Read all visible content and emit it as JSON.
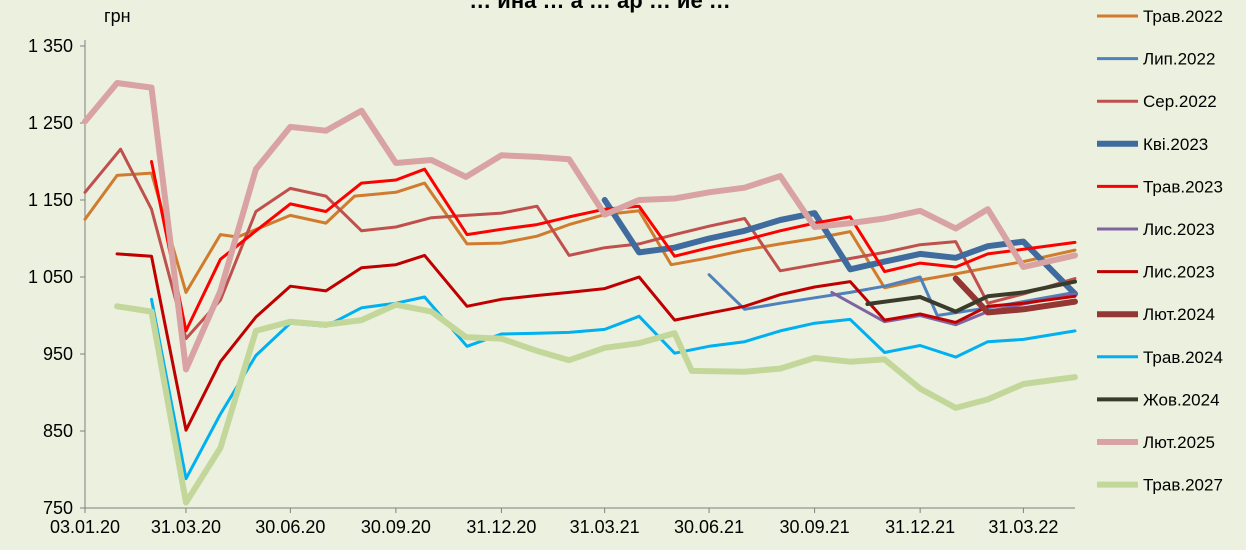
{
  "chart_data": {
    "type": "line",
    "title": "… ина … а … ар … ие …",
    "ylabel": "грн",
    "xlabel": "",
    "ylim": [
      750,
      1350
    ],
    "yticks": [
      750,
      850,
      950,
      1050,
      1150,
      1250,
      1350
    ],
    "ytick_labels": [
      "750",
      "850",
      "950",
      "1 050",
      "1 150",
      "1 250",
      "1 350"
    ],
    "xticks": [
      "2020-01-03",
      "2020-03-31",
      "2020-06-30",
      "2020-09-30",
      "2020-12-31",
      "2021-03-31",
      "2021-06-30",
      "2021-09-30",
      "2021-12-31",
      "2022-03-31"
    ],
    "xtick_labels": [
      "03.01.20",
      "31.03.20",
      "30.06.20",
      "30.09.20",
      "31.12.20",
      "31.03.21",
      "30.06.21",
      "30.09.21",
      "31.12.21",
      "31.03.22"
    ],
    "xlim": [
      "2020-01-03",
      "2022-05-15"
    ],
    "grid": false,
    "legend_position": "right",
    "series": [
      {
        "name": "Трав.2022",
        "color": "#d07b2e",
        "width": 3,
        "points": [
          [
            "2020-01-03",
            1125
          ],
          [
            "2020-01-31",
            1182
          ],
          [
            "2020-03-01",
            1185
          ],
          [
            "2020-03-31",
            1030
          ],
          [
            "2020-04-30",
            1105
          ],
          [
            "2020-05-15",
            1102
          ],
          [
            "2020-06-30",
            1130
          ],
          [
            "2020-07-31",
            1120
          ],
          [
            "2020-08-25",
            1155
          ],
          [
            "2020-09-30",
            1160
          ],
          [
            "2020-10-25",
            1172
          ],
          [
            "2020-12-01",
            1093
          ],
          [
            "2020-12-31",
            1094
          ],
          [
            "2021-01-31",
            1103
          ],
          [
            "2021-02-28",
            1118
          ],
          [
            "2021-03-31",
            1131
          ],
          [
            "2021-04-30",
            1136
          ],
          [
            "2021-05-28",
            1066
          ],
          [
            "2021-06-30",
            1075
          ],
          [
            "2021-07-31",
            1085
          ],
          [
            "2021-08-31",
            1093
          ],
          [
            "2021-09-30",
            1100
          ],
          [
            "2021-10-31",
            1109
          ],
          [
            "2021-11-30",
            1036
          ],
          [
            "2021-12-31",
            1046
          ],
          [
            "2022-01-31",
            1054
          ],
          [
            "2022-02-28",
            1062
          ],
          [
            "2022-03-31",
            1070
          ],
          [
            "2022-05-15",
            1085
          ]
        ]
      },
      {
        "name": "Лип.2022",
        "color": "#4f81bd",
        "width": 3,
        "points": [
          [
            "2021-06-30",
            1053
          ],
          [
            "2021-07-31",
            1008
          ],
          [
            "2021-08-31",
            1016
          ],
          [
            "2021-09-30",
            1023
          ],
          [
            "2021-10-31",
            1030
          ],
          [
            "2021-11-30",
            1038
          ],
          [
            "2021-12-31",
            1050
          ],
          [
            "2022-01-15",
            1000
          ],
          [
            "2022-02-28",
            1010
          ],
          [
            "2022-03-31",
            1018
          ],
          [
            "2022-05-15",
            1030
          ]
        ]
      },
      {
        "name": "Сер.2022",
        "color": "#c0504d",
        "width": 3,
        "points": [
          [
            "2020-01-03",
            1160
          ],
          [
            "2020-02-03",
            1216
          ],
          [
            "2020-03-01",
            1138
          ],
          [
            "2020-03-31",
            970
          ],
          [
            "2020-04-30",
            1020
          ],
          [
            "2020-05-31",
            1135
          ],
          [
            "2020-06-30",
            1165
          ],
          [
            "2020-07-31",
            1155
          ],
          [
            "2020-08-31",
            1110
          ],
          [
            "2020-09-30",
            1115
          ],
          [
            "2020-10-31",
            1127
          ],
          [
            "2020-11-30",
            1130
          ],
          [
            "2020-12-31",
            1133
          ],
          [
            "2021-01-31",
            1142
          ],
          [
            "2021-02-28",
            1078
          ],
          [
            "2021-03-31",
            1088
          ],
          [
            "2021-04-30",
            1093
          ],
          [
            "2021-05-31",
            1105
          ],
          [
            "2021-06-30",
            1116
          ],
          [
            "2021-07-31",
            1126
          ],
          [
            "2021-08-31",
            1058
          ],
          [
            "2021-09-30",
            1066
          ],
          [
            "2021-10-31",
            1074
          ],
          [
            "2021-11-30",
            1082
          ],
          [
            "2021-12-31",
            1092
          ],
          [
            "2022-01-31",
            1096
          ],
          [
            "2022-02-28",
            1016
          ],
          [
            "2022-03-31",
            1028
          ],
          [
            "2022-05-15",
            1048
          ]
        ]
      },
      {
        "name": "Кві.2023",
        "color": "#3f6b9e",
        "width": 6,
        "points": [
          [
            "2021-03-31",
            1150
          ],
          [
            "2021-04-30",
            1082
          ],
          [
            "2021-05-31",
            1088
          ],
          [
            "2021-06-30",
            1100
          ],
          [
            "2021-07-31",
            1110
          ],
          [
            "2021-08-31",
            1124
          ],
          [
            "2021-09-30",
            1133
          ],
          [
            "2021-10-31",
            1060
          ],
          [
            "2021-11-30",
            1070
          ],
          [
            "2021-12-31",
            1080
          ],
          [
            "2022-01-31",
            1075
          ],
          [
            "2022-02-28",
            1090
          ],
          [
            "2022-03-31",
            1096
          ],
          [
            "2022-05-15",
            1028
          ]
        ]
      },
      {
        "name": "Трав.2023",
        "color": "#ff0000",
        "width": 3,
        "points": [
          [
            "2020-03-01",
            1200
          ],
          [
            "2020-03-31",
            980
          ],
          [
            "2020-04-30",
            1073
          ],
          [
            "2020-05-31",
            1110
          ],
          [
            "2020-06-30",
            1145
          ],
          [
            "2020-07-31",
            1135
          ],
          [
            "2020-08-31",
            1172
          ],
          [
            "2020-09-30",
            1176
          ],
          [
            "2020-10-25",
            1190
          ],
          [
            "2020-12-01",
            1105
          ],
          [
            "2020-12-31",
            1112
          ],
          [
            "2021-01-31",
            1118
          ],
          [
            "2021-02-28",
            1128
          ],
          [
            "2021-03-31",
            1138
          ],
          [
            "2021-04-30",
            1142
          ],
          [
            "2021-05-31",
            1077
          ],
          [
            "2021-06-30",
            1088
          ],
          [
            "2021-07-31",
            1098
          ],
          [
            "2021-08-31",
            1110
          ],
          [
            "2021-09-30",
            1120
          ],
          [
            "2021-10-31",
            1128
          ],
          [
            "2021-11-30",
            1057
          ],
          [
            "2021-12-31",
            1068
          ],
          [
            "2022-01-31",
            1063
          ],
          [
            "2022-02-28",
            1080
          ],
          [
            "2022-03-31",
            1086
          ],
          [
            "2022-05-15",
            1095
          ]
        ]
      },
      {
        "name": "Лис.2023",
        "color": "#8064a2",
        "width": 3,
        "points": [
          [
            "2021-10-15",
            1030
          ],
          [
            "2021-11-30",
            992
          ],
          [
            "2021-12-31",
            1000
          ],
          [
            "2022-01-31",
            988
          ],
          [
            "2022-02-28",
            1005
          ],
          [
            "2022-03-31",
            1015
          ],
          [
            "2022-05-15",
            1028
          ]
        ]
      },
      {
        "name": "Лис.2023",
        "color": "#c00000",
        "width": 3,
        "points": [
          [
            "2020-01-31",
            1080
          ],
          [
            "2020-03-01",
            1077
          ],
          [
            "2020-03-31",
            851
          ],
          [
            "2020-04-30",
            940
          ],
          [
            "2020-05-31",
            998
          ],
          [
            "2020-06-30",
            1038
          ],
          [
            "2020-07-31",
            1032
          ],
          [
            "2020-08-31",
            1062
          ],
          [
            "2020-09-30",
            1066
          ],
          [
            "2020-10-25",
            1078
          ],
          [
            "2020-12-01",
            1012
          ],
          [
            "2020-12-31",
            1021
          ],
          [
            "2021-01-31",
            1026
          ],
          [
            "2021-02-28",
            1030
          ],
          [
            "2021-03-31",
            1035
          ],
          [
            "2021-04-30",
            1050
          ],
          [
            "2021-05-31",
            994
          ],
          [
            "2021-06-30",
            1003
          ],
          [
            "2021-07-31",
            1012
          ],
          [
            "2021-08-31",
            1027
          ],
          [
            "2021-09-30",
            1037
          ],
          [
            "2021-10-31",
            1044
          ],
          [
            "2021-11-30",
            994
          ],
          [
            "2021-12-31",
            1002
          ],
          [
            "2022-01-31",
            991
          ],
          [
            "2022-02-28",
            1012
          ],
          [
            "2022-03-31",
            1016
          ],
          [
            "2022-05-15",
            1025
          ]
        ]
      },
      {
        "name": "Лют.2024",
        "color": "#943634",
        "width": 6,
        "points": [
          [
            "2022-01-31",
            1048
          ],
          [
            "2022-02-28",
            1004
          ],
          [
            "2022-03-31",
            1008
          ],
          [
            "2022-05-15",
            1018
          ]
        ]
      },
      {
        "name": "Трав.2024",
        "color": "#00b0f0",
        "width": 3,
        "points": [
          [
            "2020-03-01",
            1021
          ],
          [
            "2020-03-31",
            788
          ],
          [
            "2020-04-30",
            872
          ],
          [
            "2020-05-31",
            948
          ],
          [
            "2020-06-30",
            990
          ],
          [
            "2020-07-31",
            986
          ],
          [
            "2020-08-31",
            1010
          ],
          [
            "2020-09-30",
            1016
          ],
          [
            "2020-10-25",
            1024
          ],
          [
            "2020-12-01",
            960
          ],
          [
            "2020-12-31",
            976
          ],
          [
            "2021-01-31",
            977
          ],
          [
            "2021-02-28",
            978
          ],
          [
            "2021-03-31",
            982
          ],
          [
            "2021-04-30",
            999
          ],
          [
            "2021-05-31",
            951
          ],
          [
            "2021-06-30",
            960
          ],
          [
            "2021-07-31",
            966
          ],
          [
            "2021-08-31",
            980
          ],
          [
            "2021-09-30",
            990
          ],
          [
            "2021-10-31",
            995
          ],
          [
            "2021-11-30",
            952
          ],
          [
            "2021-12-31",
            961
          ],
          [
            "2022-01-31",
            946
          ],
          [
            "2022-02-28",
            966
          ],
          [
            "2022-03-31",
            969
          ],
          [
            "2022-05-15",
            980
          ]
        ]
      },
      {
        "name": "Жов.2024",
        "color": "#3b3b2b",
        "width": 4,
        "points": [
          [
            "2021-11-15",
            1015
          ],
          [
            "2021-12-31",
            1024
          ],
          [
            "2022-01-31",
            1005
          ],
          [
            "2022-02-28",
            1025
          ],
          [
            "2022-03-31",
            1030
          ],
          [
            "2022-05-15",
            1044
          ]
        ]
      },
      {
        "name": "Лют.2025",
        "color": "#d9a3a3",
        "width": 6,
        "points": [
          [
            "2020-01-03",
            1252
          ],
          [
            "2020-01-31",
            1302
          ],
          [
            "2020-03-01",
            1296
          ],
          [
            "2020-03-31",
            930
          ],
          [
            "2020-04-30",
            1032
          ],
          [
            "2020-05-31",
            1190
          ],
          [
            "2020-06-30",
            1245
          ],
          [
            "2020-07-31",
            1240
          ],
          [
            "2020-08-31",
            1266
          ],
          [
            "2020-09-30",
            1198
          ],
          [
            "2020-10-31",
            1202
          ],
          [
            "2020-11-30",
            1180
          ],
          [
            "2020-12-31",
            1208
          ],
          [
            "2021-01-31",
            1206
          ],
          [
            "2021-02-28",
            1203
          ],
          [
            "2021-03-31",
            1131
          ],
          [
            "2021-04-30",
            1150
          ],
          [
            "2021-05-31",
            1152
          ],
          [
            "2021-06-30",
            1160
          ],
          [
            "2021-07-31",
            1166
          ],
          [
            "2021-08-31",
            1181
          ],
          [
            "2021-09-30",
            1115
          ],
          [
            "2021-10-31",
            1120
          ],
          [
            "2021-11-30",
            1126
          ],
          [
            "2021-12-31",
            1136
          ],
          [
            "2022-01-31",
            1113
          ],
          [
            "2022-02-28",
            1138
          ],
          [
            "2022-03-31",
            1063
          ],
          [
            "2022-05-15",
            1078
          ]
        ]
      },
      {
        "name": "Трав.2027",
        "color": "#c4d79b",
        "width": 6,
        "points": [
          [
            "2020-01-31",
            1012
          ],
          [
            "2020-03-01",
            1005
          ],
          [
            "2020-03-31",
            757
          ],
          [
            "2020-04-30",
            828
          ],
          [
            "2020-05-31",
            980
          ],
          [
            "2020-06-30",
            992
          ],
          [
            "2020-07-31",
            988
          ],
          [
            "2020-08-31",
            994
          ],
          [
            "2020-09-30",
            1014
          ],
          [
            "2020-10-31",
            1005
          ],
          [
            "2020-11-30",
            972
          ],
          [
            "2020-12-31",
            970
          ],
          [
            "2021-01-31",
            954
          ],
          [
            "2021-02-28",
            942
          ],
          [
            "2021-03-31",
            958
          ],
          [
            "2021-04-30",
            964
          ],
          [
            "2021-05-31",
            977
          ],
          [
            "2021-06-15",
            928
          ],
          [
            "2021-07-31",
            927
          ],
          [
            "2021-08-31",
            931
          ],
          [
            "2021-09-30",
            945
          ],
          [
            "2021-10-31",
            940
          ],
          [
            "2021-11-30",
            943
          ],
          [
            "2021-12-31",
            905
          ],
          [
            "2022-01-31",
            880
          ],
          [
            "2022-02-28",
            891
          ],
          [
            "2022-03-31",
            911
          ],
          [
            "2022-05-15",
            920
          ]
        ]
      }
    ]
  }
}
